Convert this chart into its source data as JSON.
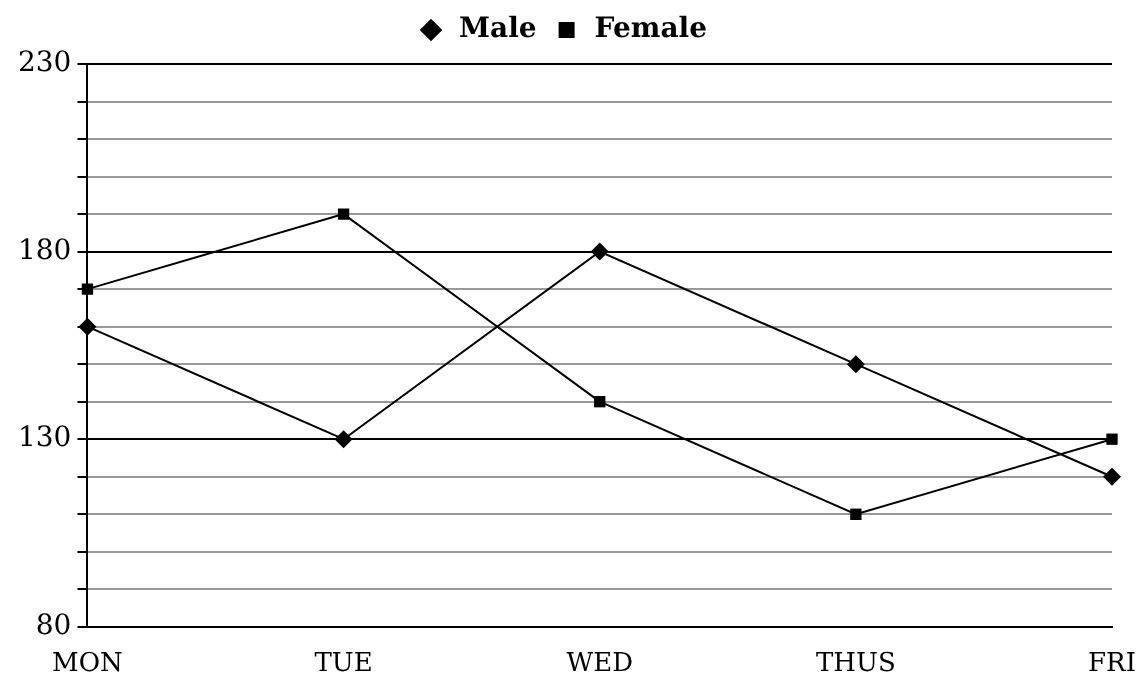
{
  "chart_data": {
    "type": "line",
    "categories": [
      "MON",
      "TUE",
      "WED",
      "THUS",
      "FRI"
    ],
    "series": [
      {
        "name": "Male",
        "color": "#000000",
        "marker": "diamond",
        "values": [
          160,
          130,
          180,
          150,
          120
        ]
      },
      {
        "name": "Female",
        "color": "#000000",
        "marker": "square",
        "values": [
          170,
          190,
          140,
          110,
          130
        ]
      }
    ],
    "ylim": [
      80,
      230
    ],
    "yticks": [
      80,
      {
        "value": 90,
        "label": null
      },
      {
        "value": 100,
        "label": null
      },
      {
        "value": 110,
        "label": null
      },
      {
        "value": 120,
        "label": null
      },
      130,
      {
        "value": 140,
        "label": null
      },
      {
        "value": 150,
        "label": null
      },
      {
        "value": 160,
        "label": null
      },
      {
        "value": 170,
        "label": null
      },
      180,
      {
        "value": 190,
        "label": null
      },
      {
        "value": 200,
        "label": null
      },
      {
        "value": 210,
        "label": null
      },
      {
        "value": 220,
        "label": null
      },
      230
    ],
    "grid": "y",
    "legend": "top",
    "line_style": "solid"
  }
}
